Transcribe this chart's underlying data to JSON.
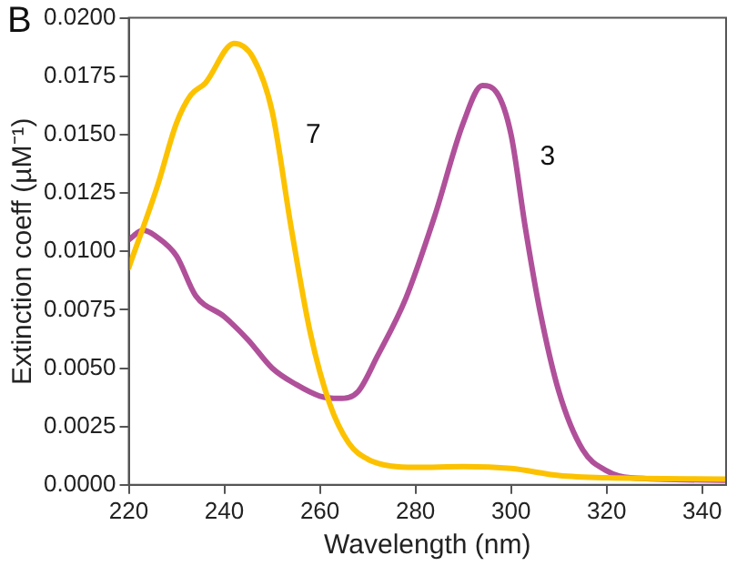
{
  "chart_data": {
    "type": "line",
    "xlabel": "Wavelength (nm)",
    "ylabel": "Extinction coeff (µM⁻¹)",
    "annotations": [
      "B"
    ],
    "xlim": [
      220,
      345
    ],
    "xticks": [
      220,
      240,
      260,
      280,
      300,
      320,
      340
    ],
    "ylim": [
      0,
      0.02
    ],
    "yticks": [
      {
        "value": 0,
        "label": "0.0000"
      },
      {
        "value": 0.0025,
        "label": "0.0025"
      },
      {
        "value": 0.005,
        "label": "0.0050"
      },
      {
        "value": 0.0075,
        "label": "0.0075"
      },
      {
        "value": 0.01,
        "label": "0.0100"
      },
      {
        "value": 0.0125,
        "label": "0.0125"
      },
      {
        "value": 0.015,
        "label": "0.0150"
      },
      {
        "value": 0.0175,
        "label": "0.0175"
      },
      {
        "value": 0.02,
        "label": "0.0200"
      }
    ],
    "grid": false,
    "legend": false,
    "marker": "none",
    "line_style": "solid",
    "series": [
      {
        "name": "7",
        "color": "#fcc200",
        "x": [
          220,
          226,
          230,
          233,
          236,
          242,
          246,
          250,
          254,
          258,
          262,
          266,
          270,
          275,
          280,
          290,
          300,
          310,
          320,
          345
        ],
        "values": [
          0.0093,
          0.0128,
          0.0155,
          0.0167,
          0.0172,
          0.0189,
          0.0183,
          0.016,
          0.011,
          0.0065,
          0.0035,
          0.0018,
          0.0011,
          0.0008,
          0.00075,
          0.00078,
          0.0007,
          0.0004,
          0.0003,
          0.00025
        ]
      },
      {
        "name": "3",
        "color": "#b0509a",
        "x": [
          220,
          223,
          226,
          230,
          234,
          240,
          245,
          250,
          255,
          260,
          264,
          268,
          272,
          278,
          284,
          290,
          294,
          297,
          300,
          303,
          306,
          310,
          315,
          320,
          325,
          345
        ],
        "values": [
          0.0105,
          0.0109,
          0.0106,
          0.0098,
          0.0081,
          0.0072,
          0.0062,
          0.005,
          0.0043,
          0.0038,
          0.0037,
          0.004,
          0.0055,
          0.008,
          0.0115,
          0.0155,
          0.0171,
          0.0168,
          0.015,
          0.011,
          0.0075,
          0.004,
          0.0015,
          0.0006,
          0.0003,
          0.0002
        ]
      }
    ]
  }
}
